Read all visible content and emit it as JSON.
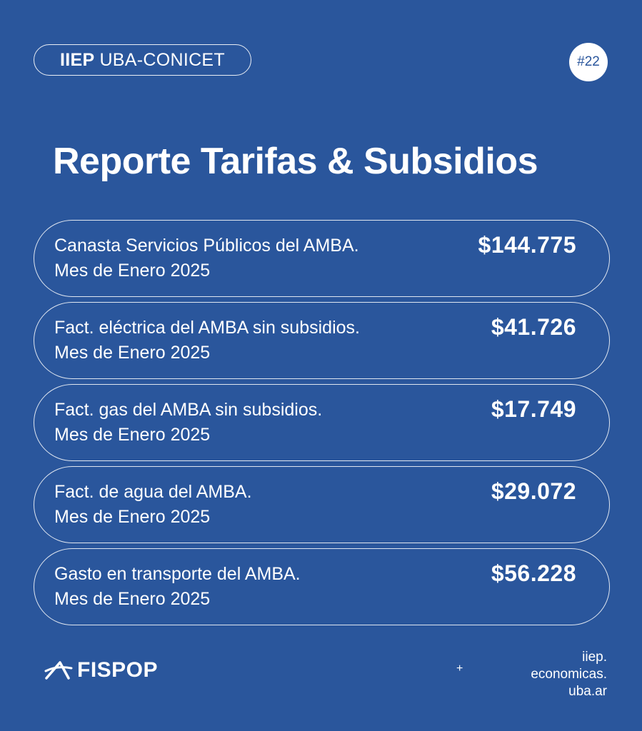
{
  "header": {
    "badge_bold": "IIEP",
    "badge_rest": "UBA-CONICET",
    "issue": "#22"
  },
  "title": "Reporte Tarifas & Subsidios",
  "rows": [
    {
      "label_line1": "Canasta Servicios Públicos del AMBA.",
      "label_line2": "Mes de Enero 2025",
      "value": "$144.775"
    },
    {
      "label_line1": "Fact. eléctrica del AMBA sin subsidios.",
      "label_line2": "Mes de Enero 2025",
      "value": "$41.726"
    },
    {
      "label_line1": "Fact. gas del AMBA sin subsidios.",
      "label_line2": "Mes de Enero 2025",
      "value": "$17.749"
    },
    {
      "label_line1": "Fact. de agua del AMBA.",
      "label_line2": "Mes de Enero 2025",
      "value": "$29.072"
    },
    {
      "label_line1": "Gasto en transporte del AMBA.",
      "label_line2": "Mes de Enero 2025",
      "value": "$56.228"
    }
  ],
  "footer": {
    "logo_icon": "fispop-logo-icon",
    "logo_text": "FISPOP",
    "plus": "+",
    "site_line1": "iiep.",
    "site_line2": "economicas.",
    "site_line3": "uba.ar"
  },
  "colors": {
    "background": "#2a569c",
    "text": "#ffffff"
  }
}
